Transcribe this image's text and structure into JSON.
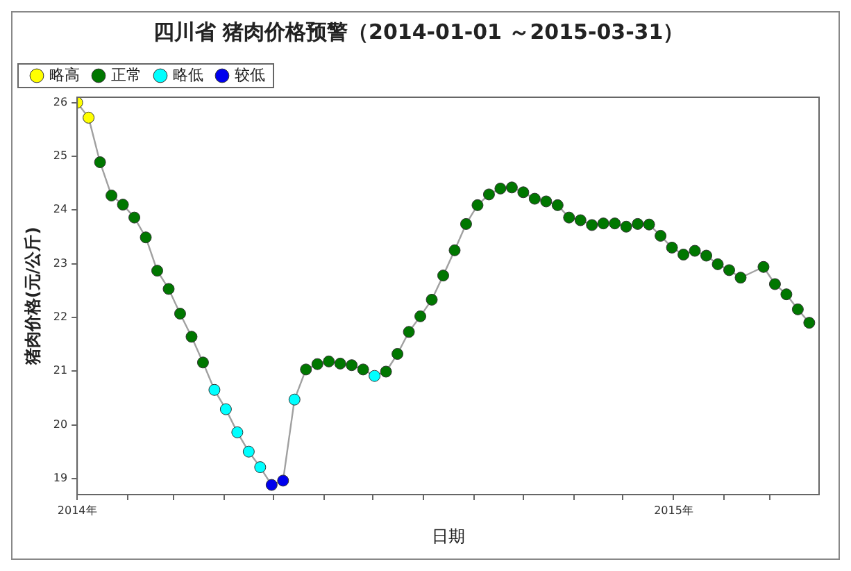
{
  "chart_data": {
    "type": "line",
    "title": "四川省 猪肉价格预警（2014-01-01 ～2015-03-31）",
    "xlabel": "日期",
    "ylabel": "猪肉价格(元/公斤)",
    "xlim": [
      "2014-01-01",
      "2015-03-31"
    ],
    "xticks": [
      {
        "value": "2014-01-01",
        "label": "2014年"
      },
      {
        "value": "2014-02-01",
        "label": null
      },
      {
        "value": "2014-03-01",
        "label": null
      },
      {
        "value": "2014-04-01",
        "label": null
      },
      {
        "value": "2014-05-01",
        "label": null
      },
      {
        "value": "2014-06-01",
        "label": null
      },
      {
        "value": "2014-07-01",
        "label": null
      },
      {
        "value": "2014-08-01",
        "label": null
      },
      {
        "value": "2014-09-01",
        "label": null
      },
      {
        "value": "2014-10-01",
        "label": null
      },
      {
        "value": "2014-11-01",
        "label": null
      },
      {
        "value": "2014-12-01",
        "label": null
      },
      {
        "value": "2015-01-01",
        "label": "2015年"
      },
      {
        "value": "2015-02-01",
        "label": null
      },
      {
        "value": "2015-03-01",
        "label": null
      }
    ],
    "ylim": [
      18.7,
      26.1
    ],
    "yticks": [
      19,
      20,
      21,
      22,
      23,
      24,
      25,
      26
    ],
    "grid": false,
    "legend": "top left",
    "series": [
      {
        "color": "#a0a0a0",
        "marker": "none",
        "x": [
          "2014-01-01",
          "2014-01-08",
          "2014-01-15",
          "2014-01-22",
          "2014-01-29",
          "2014-02-05",
          "2014-02-12",
          "2014-02-19",
          "2014-02-26",
          "2014-03-05",
          "2014-03-12",
          "2014-03-19",
          "2014-03-26",
          "2014-04-02",
          "2014-04-09",
          "2014-04-16",
          "2014-04-23",
          "2014-04-30",
          "2014-05-07",
          "2014-05-14",
          "2014-05-21",
          "2014-05-28",
          "2014-06-04",
          "2014-06-11",
          "2014-06-18",
          "2014-06-25",
          "2014-07-02",
          "2014-07-09",
          "2014-07-16",
          "2014-07-23",
          "2014-07-30",
          "2014-08-06",
          "2014-08-13",
          "2014-08-20",
          "2014-08-27",
          "2014-09-03",
          "2014-09-10",
          "2014-09-17",
          "2014-09-24",
          "2014-10-01",
          "2014-10-08",
          "2014-10-15",
          "2014-10-22",
          "2014-10-29",
          "2014-11-05",
          "2014-11-12",
          "2014-11-19",
          "2014-11-26",
          "2014-12-03",
          "2014-12-10",
          "2014-12-17",
          "2014-12-24",
          "2014-12-31",
          "2015-01-07",
          "2015-01-14",
          "2015-01-21",
          "2015-01-28",
          "2015-02-04",
          "2015-02-11",
          "2015-02-25",
          "2015-03-04",
          "2015-03-11",
          "2015-03-18",
          "2015-03-25"
        ],
        "values": [
          26.0,
          25.72,
          24.89,
          24.27,
          24.1,
          23.86,
          23.49,
          22.87,
          22.53,
          22.07,
          21.64,
          21.16,
          20.65,
          20.29,
          19.86,
          19.5,
          19.21,
          18.88,
          18.96,
          20.47,
          21.03,
          21.13,
          21.18,
          21.14,
          21.11,
          21.03,
          20.91,
          20.99,
          21.32,
          21.73,
          22.02,
          22.33,
          22.78,
          23.25,
          23.74,
          24.09,
          24.29,
          24.4,
          24.42,
          24.33,
          24.21,
          24.16,
          24.09,
          23.86,
          23.81,
          23.72,
          23.75,
          23.75,
          23.69,
          23.74,
          23.73,
          23.52,
          23.3,
          23.17,
          23.24,
          23.15,
          22.99,
          22.88,
          22.74,
          22.94,
          22.62,
          22.43,
          22.15,
          21.9
        ]
      },
      {
        "type": "scatter",
        "name": "略高",
        "color": "#ffff00",
        "marker": "circle",
        "x": [
          "2014-01-01",
          "2014-01-08"
        ],
        "values": [
          26.0,
          25.72
        ]
      },
      {
        "type": "scatter",
        "name": "正常",
        "color": "#007700",
        "marker": "circle",
        "x": [
          "2014-01-15",
          "2014-01-22",
          "2014-01-29",
          "2014-02-05",
          "2014-02-12",
          "2014-02-19",
          "2014-02-26",
          "2014-03-05",
          "2014-03-12",
          "2014-03-19",
          "2014-05-21",
          "2014-05-28",
          "2014-06-04",
          "2014-06-11",
          "2014-06-18",
          "2014-06-25",
          "2014-07-09",
          "2014-07-16",
          "2014-07-23",
          "2014-07-30",
          "2014-08-06",
          "2014-08-13",
          "2014-08-20",
          "2014-08-27",
          "2014-09-03",
          "2014-09-10",
          "2014-09-17",
          "2014-09-24",
          "2014-10-01",
          "2014-10-08",
          "2014-10-15",
          "2014-10-22",
          "2014-10-29",
          "2014-11-05",
          "2014-11-12",
          "2014-11-19",
          "2014-11-26",
          "2014-12-03",
          "2014-12-10",
          "2014-12-17",
          "2014-12-24",
          "2014-12-31",
          "2015-01-07",
          "2015-01-14",
          "2015-01-21",
          "2015-01-28",
          "2015-02-04",
          "2015-02-11",
          "2015-02-25",
          "2015-03-04",
          "2015-03-11",
          "2015-03-18",
          "2015-03-25"
        ],
        "values": [
          24.89,
          24.27,
          24.1,
          23.86,
          23.49,
          22.87,
          22.53,
          22.07,
          21.64,
          21.16,
          21.03,
          21.13,
          21.18,
          21.14,
          21.11,
          21.03,
          20.99,
          21.32,
          21.73,
          22.02,
          22.33,
          22.78,
          23.25,
          23.74,
          24.09,
          24.29,
          24.4,
          24.42,
          24.33,
          24.21,
          24.16,
          24.09,
          23.86,
          23.81,
          23.72,
          23.75,
          23.75,
          23.69,
          23.74,
          23.73,
          23.52,
          23.3,
          23.17,
          23.24,
          23.15,
          22.99,
          22.88,
          22.74,
          22.94,
          22.62,
          22.43,
          22.15,
          21.9
        ]
      },
      {
        "type": "scatter",
        "name": "略低",
        "color": "#00ffff",
        "marker": "circle",
        "x": [
          "2014-03-26",
          "2014-04-02",
          "2014-04-09",
          "2014-04-16",
          "2014-04-23",
          "2014-05-14",
          "2014-07-02"
        ],
        "values": [
          20.65,
          20.29,
          19.86,
          19.5,
          19.21,
          20.47,
          20.91
        ]
      },
      {
        "type": "scatter",
        "name": "较低",
        "color": "#0000ee",
        "marker": "circle",
        "x": [
          "2014-04-30",
          "2014-05-07"
        ],
        "values": [
          18.88,
          18.96
        ]
      }
    ]
  }
}
